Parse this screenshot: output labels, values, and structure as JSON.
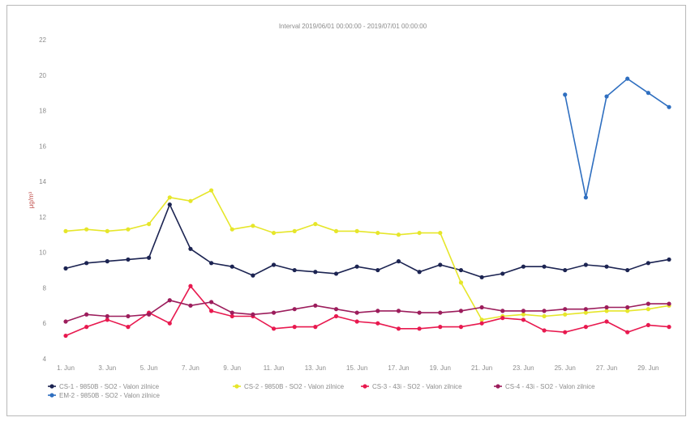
{
  "chart_data": {
    "type": "line",
    "title": "Interval 2019/06/01 00:00:00 - 2019/07/01 00:00:00",
    "ylabel": "μg/m³",
    "xlabel": "",
    "ylim": [
      4,
      22
    ],
    "yticks": [
      4,
      6,
      8,
      10,
      12,
      14,
      16,
      18,
      20,
      22
    ],
    "x_tick_labels": [
      "1. Jun",
      "3. Jun",
      "5. Jun",
      "7. Jun",
      "9. Jun",
      "11. Jun",
      "13. Jun",
      "15. Jun",
      "17. Jun",
      "19. Jun",
      "21. Jun",
      "23. Jun",
      "25. Jun",
      "27. Jun",
      "29. Jun"
    ],
    "x": [
      1,
      2,
      3,
      4,
      5,
      6,
      7,
      8,
      9,
      10,
      11,
      12,
      13,
      14,
      15,
      16,
      17,
      18,
      19,
      20,
      21,
      22,
      23,
      24,
      25,
      26,
      27,
      28,
      29,
      30
    ],
    "grid": false,
    "legend_position": "bottom",
    "series": [
      {
        "name": "CS-1 - 9850B - SO2 - Valon zilnice",
        "color": "#1c2452",
        "values": [
          9.1,
          9.4,
          9.5,
          9.6,
          9.7,
          12.7,
          10.2,
          9.4,
          9.2,
          8.7,
          9.3,
          9.0,
          8.9,
          8.8,
          9.2,
          9.0,
          9.5,
          8.9,
          9.3,
          9.0,
          8.6,
          8.8,
          9.2,
          9.2,
          9.0,
          9.3,
          9.2,
          9.0,
          9.4,
          9.6
        ]
      },
      {
        "name": "CS-2 - 9850B - SO2 - Valon zilnice",
        "color": "#e6e62a",
        "values": [
          11.2,
          11.3,
          11.2,
          11.3,
          11.6,
          13.1,
          12.9,
          13.5,
          11.3,
          11.5,
          11.1,
          11.2,
          11.6,
          11.2,
          11.2,
          11.1,
          11.0,
          11.1,
          11.1,
          8.3,
          6.2,
          6.4,
          6.5,
          6.4,
          6.5,
          6.6,
          6.7,
          6.7,
          6.8,
          7.0
        ]
      },
      {
        "name": "CS-3 - 43i - SO2 - Valon zilnice",
        "color": "#e8194f",
        "values": [
          5.3,
          5.8,
          6.2,
          5.8,
          6.6,
          6.0,
          8.1,
          6.7,
          6.4,
          6.4,
          5.7,
          5.8,
          5.8,
          6.4,
          6.1,
          6.0,
          5.7,
          5.7,
          5.8,
          5.8,
          6.0,
          6.3,
          6.2,
          5.6,
          5.5,
          5.8,
          6.1,
          5.5,
          5.9,
          5.8
        ]
      },
      {
        "name": "CS-4 - 43i - SO2 - Valon zilnice",
        "color": "#9c1d5c",
        "values": [
          6.1,
          6.5,
          6.4,
          6.4,
          6.5,
          7.3,
          7.0,
          7.2,
          6.6,
          6.5,
          6.6,
          6.8,
          7.0,
          6.8,
          6.6,
          6.7,
          6.7,
          6.6,
          6.6,
          6.7,
          6.9,
          6.7,
          6.7,
          6.7,
          6.8,
          6.8,
          6.9,
          6.9,
          7.1,
          7.1
        ]
      },
      {
        "name": "EM-2 - 9850B - SO2 - Valon zilnice",
        "color": "#2f6fc0",
        "values": [
          null,
          null,
          null,
          null,
          null,
          null,
          null,
          null,
          null,
          null,
          null,
          null,
          null,
          null,
          null,
          null,
          null,
          null,
          null,
          null,
          null,
          null,
          null,
          null,
          18.9,
          13.1,
          18.8,
          19.8,
          19.0,
          18.2
        ]
      }
    ]
  }
}
